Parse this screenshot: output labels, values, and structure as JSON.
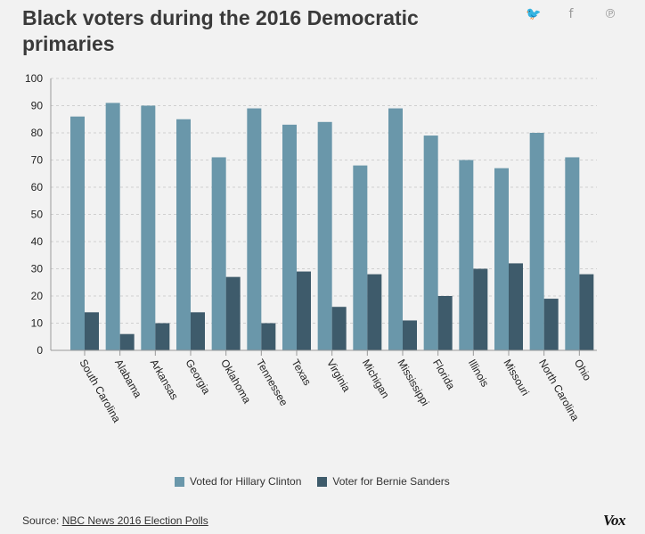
{
  "header": {
    "title": "Black voters during the 2016 Democratic primaries",
    "share_icons": [
      "twitter-icon",
      "facebook-icon",
      "pinterest-icon"
    ]
  },
  "chart_data": {
    "type": "bar",
    "categories": [
      "South Carolina",
      "Alabama",
      "Arkansas",
      "Georgia",
      "Oklahoma",
      "Tennessee",
      "Texas",
      "Virginia",
      "Michigan",
      "Mississippi",
      "Florida",
      "Illinois",
      "Missouri",
      "North Carolina",
      "Ohio"
    ],
    "series": [
      {
        "name": "Voted for Hillary Clinton",
        "color": "#6a97aa",
        "values": [
          86,
          91,
          90,
          85,
          71,
          89,
          83,
          84,
          68,
          89,
          79,
          70,
          67,
          80,
          71
        ]
      },
      {
        "name": "Voter for Bernie Sanders",
        "color": "#3e5b6b",
        "values": [
          14,
          6,
          10,
          14,
          27,
          10,
          29,
          16,
          28,
          11,
          20,
          30,
          32,
          19,
          28
        ]
      }
    ],
    "ylim": [
      0,
      100
    ],
    "yticks": [
      0,
      10,
      20,
      30,
      40,
      50,
      60,
      70,
      80,
      90,
      100
    ],
    "grid": true,
    "legend": "bottom"
  },
  "footer": {
    "source_label": "Source:",
    "source_link": "NBC News 2016 Election Polls",
    "brand": "Vox"
  }
}
